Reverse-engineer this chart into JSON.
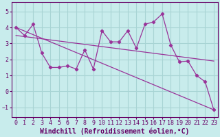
{
  "background_color": "#c8ecec",
  "grid_color": "#a8d4d4",
  "line_color": "#993399",
  "xlabel": "Windchill (Refroidissement éolien,°C)",
  "xlim": [
    -0.5,
    23.5
  ],
  "ylim": [
    -1.6,
    5.6
  ],
  "yticks": [
    -1,
    0,
    1,
    2,
    3,
    4,
    5
  ],
  "xticks": [
    0,
    1,
    2,
    3,
    4,
    5,
    6,
    7,
    8,
    9,
    10,
    11,
    12,
    13,
    14,
    15,
    16,
    17,
    18,
    19,
    20,
    21,
    22,
    23
  ],
  "line1_x": [
    0,
    1,
    2,
    3,
    4,
    5,
    6,
    7,
    8,
    9,
    10,
    11,
    12,
    13,
    14,
    15,
    16,
    17,
    18,
    19,
    20,
    21,
    22,
    23
  ],
  "line1_y": [
    4.0,
    3.5,
    4.2,
    2.4,
    1.5,
    1.5,
    1.6,
    1.4,
    2.6,
    1.4,
    3.8,
    3.1,
    3.1,
    3.8,
    2.7,
    4.2,
    4.35,
    4.85,
    2.9,
    1.85,
    1.9,
    1.0,
    0.6,
    -1.15
  ],
  "line2_x": [
    0,
    23
  ],
  "line2_y": [
    4.0,
    -1.15
  ],
  "line3_x": [
    0,
    23
  ],
  "line3_y": [
    3.5,
    1.9
  ],
  "tick_fontsize": 6,
  "label_fontsize": 7
}
